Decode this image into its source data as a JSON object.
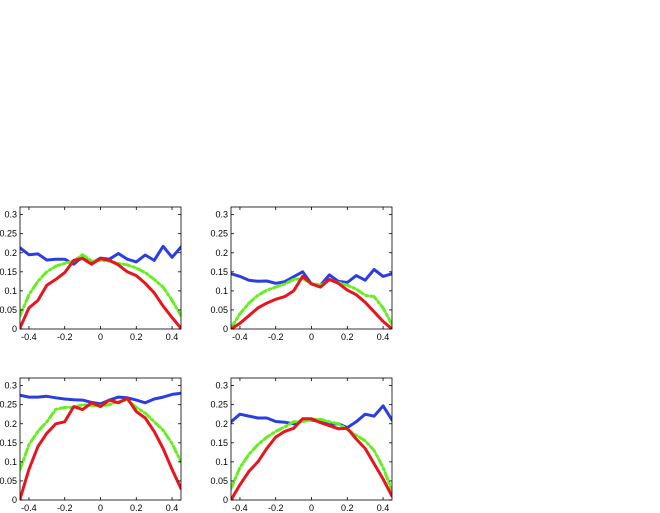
{
  "chart_data": [
    {
      "type": "line",
      "xlim": [
        -0.45,
        0.45
      ],
      "ylim": [
        0,
        0.32
      ],
      "xticks": [
        -0.4,
        -0.2,
        0,
        0.2,
        0.4
      ],
      "xtick_labels": [
        "-0.4",
        "-0.2",
        "0",
        "0.2",
        "0.4"
      ],
      "yticks": [
        0,
        0.05,
        0.1,
        0.15,
        0.2,
        0.25,
        0.3
      ],
      "ytick_labels": [
        "0",
        "0.05",
        "0.1",
        "0.15",
        "0.2",
        "0.25",
        "0.3"
      ],
      "grid": false,
      "x": [
        -0.45,
        -0.4,
        -0.35,
        -0.3,
        -0.25,
        -0.2,
        -0.15,
        -0.1,
        -0.05,
        0,
        0.05,
        0.1,
        0.15,
        0.2,
        0.25,
        0.3,
        0.35,
        0.4,
        0.45
      ],
      "series": [
        {
          "color": "#2b3fe0",
          "style": "solid",
          "values": [
            0.213,
            0.195,
            0.197,
            0.181,
            0.183,
            0.183,
            0.17,
            0.19,
            0.172,
            0.186,
            0.183,
            0.198,
            0.183,
            0.176,
            0.194,
            0.18,
            0.217,
            0.188,
            0.215
          ]
        },
        {
          "color": "#66ee22",
          "style": "dashdot",
          "values": [
            0.035,
            0.09,
            0.125,
            0.15,
            0.165,
            0.172,
            0.178,
            0.195,
            0.178,
            0.18,
            0.178,
            0.172,
            0.168,
            0.16,
            0.148,
            0.13,
            0.11,
            0.075,
            0.035
          ]
        },
        {
          "color": "#e8141e",
          "style": "solid",
          "values": [
            0.003,
            0.055,
            0.075,
            0.115,
            0.13,
            0.148,
            0.18,
            0.185,
            0.17,
            0.185,
            0.18,
            0.168,
            0.15,
            0.14,
            0.12,
            0.095,
            0.06,
            0.03,
            0.002
          ]
        }
      ]
    },
    {
      "type": "line",
      "xlim": [
        -0.45,
        0.45
      ],
      "ylim": [
        0,
        0.32
      ],
      "xticks": [
        -0.4,
        -0.2,
        0,
        0.2,
        0.4
      ],
      "xtick_labels": [
        "-0.4",
        "-0.2",
        "0",
        "0.2",
        "0.4"
      ],
      "yticks": [
        0,
        0.05,
        0.1,
        0.15,
        0.2,
        0.25,
        0.3
      ],
      "ytick_labels": [
        "0",
        "0.05",
        "0.1",
        "0.15",
        "0.2",
        "0.25",
        "0.3"
      ],
      "grid": false,
      "x": [
        -0.45,
        -0.4,
        -0.35,
        -0.3,
        -0.25,
        -0.2,
        -0.15,
        -0.1,
        -0.05,
        0,
        0.05,
        0.1,
        0.15,
        0.2,
        0.25,
        0.3,
        0.35,
        0.4,
        0.45
      ],
      "series": [
        {
          "color": "#2b3fe0",
          "style": "solid",
          "values": [
            0.145,
            0.138,
            0.128,
            0.125,
            0.126,
            0.12,
            0.124,
            0.137,
            0.15,
            0.118,
            0.115,
            0.142,
            0.125,
            0.122,
            0.14,
            0.128,
            0.156,
            0.138,
            0.145
          ]
        },
        {
          "color": "#66ee22",
          "style": "dashdot",
          "values": [
            0.003,
            0.04,
            0.068,
            0.088,
            0.102,
            0.11,
            0.118,
            0.13,
            0.132,
            0.12,
            0.115,
            0.128,
            0.122,
            0.115,
            0.105,
            0.088,
            0.085,
            0.055,
            0.012
          ]
        },
        {
          "color": "#e8141e",
          "style": "solid",
          "values": [
            0.0,
            0.015,
            0.035,
            0.055,
            0.068,
            0.078,
            0.085,
            0.1,
            0.138,
            0.118,
            0.11,
            0.13,
            0.12,
            0.102,
            0.09,
            0.07,
            0.045,
            0.02,
            0.0
          ]
        }
      ]
    },
    {
      "type": "line",
      "xlim": [
        -0.45,
        0.45
      ],
      "ylim": [
        0,
        0.32
      ],
      "xticks": [
        -0.4,
        -0.2,
        0,
        0.2,
        0.4
      ],
      "xtick_labels": [
        "-0.4",
        "-0.2",
        "0",
        "0.2",
        "0.4"
      ],
      "yticks": [
        0,
        0.05,
        0.1,
        0.15,
        0.2,
        0.25,
        0.3
      ],
      "ytick_labels": [
        "0",
        "0.05",
        "0.1",
        "0.15",
        "0.2",
        "0.25",
        "0.3"
      ],
      "grid": false,
      "x": [
        -0.45,
        -0.4,
        -0.35,
        -0.3,
        -0.25,
        -0.2,
        -0.15,
        -0.1,
        -0.05,
        0,
        0.05,
        0.1,
        0.15,
        0.2,
        0.25,
        0.3,
        0.35,
        0.4,
        0.45
      ],
      "series": [
        {
          "color": "#2b3fe0",
          "style": "solid",
          "values": [
            0.275,
            0.27,
            0.27,
            0.272,
            0.268,
            0.265,
            0.263,
            0.262,
            0.256,
            0.252,
            0.262,
            0.27,
            0.268,
            0.262,
            0.255,
            0.265,
            0.27,
            0.277,
            0.28
          ]
        },
        {
          "color": "#66ee22",
          "style": "dashdot",
          "values": [
            0.08,
            0.145,
            0.18,
            0.205,
            0.238,
            0.243,
            0.243,
            0.25,
            0.248,
            0.247,
            0.25,
            0.258,
            0.263,
            0.243,
            0.228,
            0.205,
            0.183,
            0.148,
            0.1
          ]
        },
        {
          "color": "#e8141e",
          "style": "solid",
          "values": [
            0.002,
            0.08,
            0.14,
            0.175,
            0.2,
            0.205,
            0.245,
            0.237,
            0.255,
            0.245,
            0.262,
            0.255,
            0.267,
            0.232,
            0.215,
            0.18,
            0.135,
            0.08,
            0.03
          ]
        }
      ]
    },
    {
      "type": "line",
      "xlim": [
        -0.45,
        0.45
      ],
      "ylim": [
        0,
        0.32
      ],
      "xticks": [
        -0.4,
        -0.2,
        0,
        0.2,
        0.4
      ],
      "xtick_labels": [
        "-0.4",
        "-0.2",
        "0",
        "0.2",
        "0.4"
      ],
      "yticks": [
        0,
        0.05,
        0.1,
        0.15,
        0.2,
        0.25,
        0.3
      ],
      "ytick_labels": [
        "0",
        "0.05",
        "0.1",
        "0.15",
        "0.2",
        "0.25",
        "0.3"
      ],
      "grid": false,
      "x": [
        -0.45,
        -0.4,
        -0.35,
        -0.3,
        -0.25,
        -0.2,
        -0.15,
        -0.1,
        -0.05,
        0,
        0.05,
        0.1,
        0.15,
        0.2,
        0.25,
        0.3,
        0.35,
        0.4,
        0.45
      ],
      "series": [
        {
          "color": "#2b3fe0",
          "style": "solid",
          "values": [
            0.205,
            0.225,
            0.22,
            0.215,
            0.215,
            0.206,
            0.204,
            0.2,
            0.208,
            0.21,
            0.205,
            0.198,
            0.2,
            0.19,
            0.205,
            0.225,
            0.22,
            0.247,
            0.21
          ]
        },
        {
          "color": "#66ee22",
          "style": "dashdot",
          "values": [
            0.03,
            0.085,
            0.12,
            0.145,
            0.165,
            0.18,
            0.192,
            0.205,
            0.205,
            0.212,
            0.212,
            0.205,
            0.2,
            0.185,
            0.17,
            0.155,
            0.13,
            0.085,
            0.025
          ]
        },
        {
          "color": "#e8141e",
          "style": "solid",
          "values": [
            0.0,
            0.04,
            0.075,
            0.1,
            0.135,
            0.165,
            0.18,
            0.188,
            0.213,
            0.213,
            0.203,
            0.195,
            0.187,
            0.188,
            0.16,
            0.135,
            0.095,
            0.055,
            0.01
          ]
        }
      ]
    }
  ]
}
